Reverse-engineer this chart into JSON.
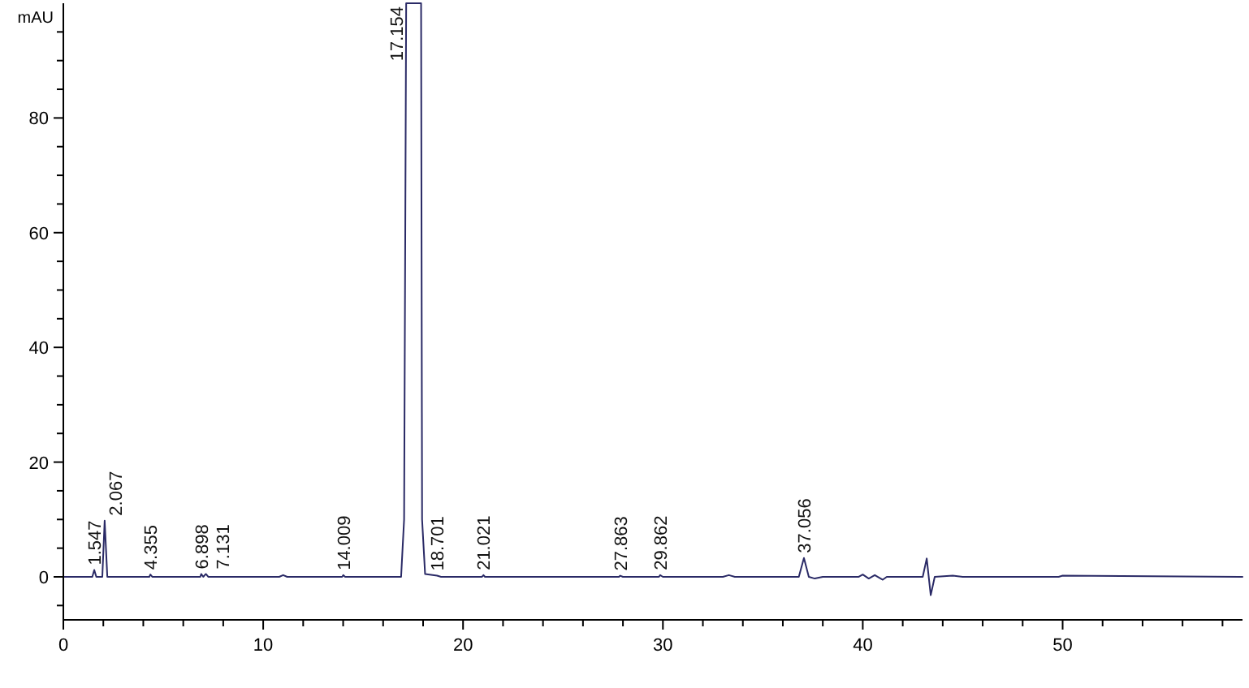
{
  "chart_data": {
    "type": "line",
    "ylabel": "mAU",
    "xlim": [
      0,
      59
    ],
    "ylim": [
      -7.5,
      100
    ],
    "xticks": [
      0,
      {
        "value": 2,
        "label": null
      },
      {
        "value": 4,
        "label": null
      },
      {
        "value": 6,
        "label": null
      },
      {
        "value": 8,
        "label": null
      },
      10,
      {
        "value": 12,
        "label": null
      },
      {
        "value": 14,
        "label": null
      },
      {
        "value": 16,
        "label": null
      },
      {
        "value": 18,
        "label": null
      },
      20,
      {
        "value": 22,
        "label": null
      },
      {
        "value": 24,
        "label": null
      },
      {
        "value": 26,
        "label": null
      },
      {
        "value": 28,
        "label": null
      },
      30,
      {
        "value": 32,
        "label": null
      },
      {
        "value": 34,
        "label": null
      },
      {
        "value": 36,
        "label": null
      },
      {
        "value": 38,
        "label": null
      },
      40,
      {
        "value": 42,
        "label": null
      },
      {
        "value": 44,
        "label": null
      },
      {
        "value": 46,
        "label": null
      },
      {
        "value": 48,
        "label": null
      },
      50,
      {
        "value": 52,
        "label": null
      },
      {
        "value": 54,
        "label": null
      },
      {
        "value": 56,
        "label": null
      },
      {
        "value": 58,
        "label": null
      }
    ],
    "yticks": [
      {
        "value": -5,
        "label": null
      },
      0,
      {
        "value": 5,
        "label": null
      },
      {
        "value": 10,
        "label": null
      },
      {
        "value": 15,
        "label": null
      },
      20,
      {
        "value": 25,
        "label": null
      },
      {
        "value": 30,
        "label": null
      },
      {
        "value": 35,
        "label": null
      },
      40,
      {
        "value": 45,
        "label": null
      },
      {
        "value": 50,
        "label": null
      },
      {
        "value": 55,
        "label": null
      },
      60,
      {
        "value": 65,
        "label": null
      },
      {
        "value": 70,
        "label": null
      },
      {
        "value": 75,
        "label": null
      },
      80,
      {
        "value": 85,
        "label": null
      },
      {
        "value": 90,
        "label": null
      },
      {
        "value": 95,
        "label": null
      }
    ],
    "grid": false,
    "series": [
      {
        "color": "#2a2a66",
        "x": [
          0,
          1.45,
          1.547,
          1.65,
          1.95,
          2.067,
          2.2,
          4.3,
          4.355,
          4.45,
          6.85,
          6.898,
          7.0,
          7.131,
          7.25,
          10.8,
          11,
          11.2,
          13.95,
          14.009,
          14.1,
          16.9,
          17.05,
          17.154,
          17.9,
          17.95,
          18.1,
          18.701,
          18.9,
          20.95,
          21.021,
          21.1,
          27.8,
          27.863,
          28,
          29.8,
          29.862,
          30,
          33,
          33.3,
          33.6,
          36.8,
          37.056,
          37.3,
          37.6,
          38,
          39.8,
          40,
          40.3,
          40.6,
          41,
          41.2,
          43,
          43.2,
          43.4,
          43.6,
          44.5,
          45,
          49.8,
          50,
          59
        ],
        "values": [
          0,
          0,
          1.2,
          0,
          0,
          9.8,
          0,
          0,
          0.4,
          0,
          0,
          0.5,
          0,
          0.5,
          0,
          0,
          0.3,
          0,
          0,
          0.3,
          0,
          0,
          10,
          100,
          100,
          10,
          0.5,
          0.2,
          0,
          0,
          0.3,
          0,
          0,
          0.2,
          0,
          0,
          0.3,
          0,
          0,
          0.3,
          0,
          0,
          3.3,
          0,
          -0.3,
          0,
          0,
          0.4,
          -0.3,
          0.3,
          -0.5,
          0,
          0,
          3.2,
          -3.2,
          0,
          0.2,
          0,
          0,
          0.2,
          0
        ]
      }
    ],
    "annotations": [
      {
        "text": "1.547",
        "x": 1.547,
        "y": 1.2
      },
      {
        "text": "2.067",
        "x": 2.067,
        "y": 9.8
      },
      {
        "text": "4.355",
        "x": 4.355,
        "y": 0.4
      },
      {
        "text": "6.898",
        "x": 6.898,
        "y": 0.5
      },
      {
        "text": "7.131",
        "x": 7.131,
        "y": 0.5
      },
      {
        "text": "14.009",
        "x": 14.009,
        "y": 0.3
      },
      {
        "text": "17.154",
        "x": 17.154,
        "y": 100
      },
      {
        "text": "18.701",
        "x": 18.701,
        "y": 0.2
      },
      {
        "text": "21.021",
        "x": 21.021,
        "y": 0.3
      },
      {
        "text": "27.863",
        "x": 27.863,
        "y": 0.2
      },
      {
        "text": "29.862",
        "x": 29.862,
        "y": 0.3
      },
      {
        "text": "37.056",
        "x": 37.056,
        "y": 3.3
      }
    ]
  }
}
